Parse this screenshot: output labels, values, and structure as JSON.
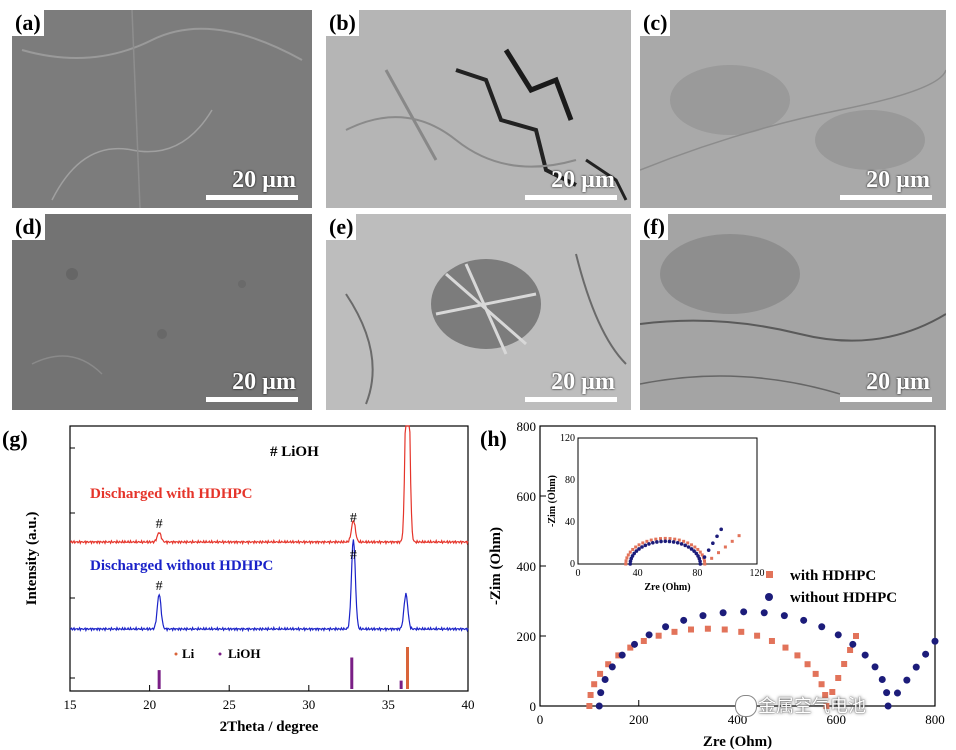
{
  "panels": [
    {
      "id": "a",
      "label": "(a)",
      "scale": "20 µm",
      "tone": "smooth"
    },
    {
      "id": "b",
      "label": "(b)",
      "scale": "20 µm",
      "tone": "cracked"
    },
    {
      "id": "c",
      "label": "(c)",
      "scale": "20 µm",
      "tone": "textured"
    },
    {
      "id": "d",
      "label": "(d)",
      "scale": "20 µm",
      "tone": "smooth"
    },
    {
      "id": "e",
      "label": "(e)",
      "scale": "20 µm",
      "tone": "cracked"
    },
    {
      "id": "f",
      "label": "(f)",
      "scale": "20 µm",
      "tone": "textured"
    }
  ],
  "colors": {
    "red": "#e5342a",
    "blue": "#1a22c8",
    "purple": "#7a1f86",
    "orange": "#d9643a",
    "salmon": "#e2735a",
    "navy": "#1c1c7a"
  },
  "chart_data": [
    {
      "panel_label": "(g)",
      "type": "line",
      "xlabel": "2Theta / degree",
      "ylabel": "Intensity (a.u.)",
      "xlim": [
        15,
        40
      ],
      "xticks": [
        15,
        20,
        25,
        30,
        35,
        40
      ],
      "annotations": {
        "liohLegend": "# LiOH",
        "hash": "#"
      },
      "series": [
        {
          "name": "Discharged with HDHPC",
          "color": "#e5342a",
          "peaks": [
            {
              "x": 20.6,
              "h": 0.04
            },
            {
              "x": 32.8,
              "h": 0.09
            },
            {
              "x": 36.2,
              "h": 1.0
            }
          ]
        },
        {
          "name": "Discharged without HDHPC",
          "color": "#1a22c8",
          "peaks": [
            {
              "x": 20.6,
              "h": 0.28
            },
            {
              "x": 32.8,
              "h": 0.72
            },
            {
              "x": 36.1,
              "h": 0.28
            }
          ]
        }
      ],
      "reference_sticks": [
        {
          "name": "Li",
          "color": "#d9643a",
          "x": [
            36.2
          ],
          "h": [
            1.0
          ]
        },
        {
          "name": "LiOH",
          "color": "#7a1f86",
          "x": [
            20.6,
            32.7,
            35.8
          ],
          "h": [
            0.45,
            0.75,
            0.2
          ]
        }
      ],
      "legend": [
        "Li",
        "LiOH"
      ]
    },
    {
      "panel_label": "(h)",
      "type": "scatter",
      "xlabel": "Zre (Ohm)",
      "ylabel": "-Zim (Ohm)",
      "xlim": [
        0,
        800
      ],
      "ylim": [
        0,
        800
      ],
      "xticks": [
        0,
        200,
        400,
        600,
        800
      ],
      "yticks": [
        0,
        200,
        400,
        600,
        800
      ],
      "series": [
        {
          "name": "with HDHPC",
          "color": "#e2735a",
          "marker": "square",
          "r0": 100,
          "r1": 580,
          "tail_end": [
            640,
            200
          ]
        },
        {
          "name": "without HDHPC",
          "color": "#1c1c7a",
          "marker": "circle",
          "r0": 120,
          "r1": 705,
          "tail_end": [
            800,
            185
          ]
        }
      ],
      "inset": {
        "xlim": [
          0,
          120
        ],
        "ylim": [
          0,
          120
        ],
        "xticks": [
          0,
          40,
          80,
          120
        ],
        "yticks": [
          0,
          40,
          80,
          120
        ],
        "xlabel": "Zre (Ohm)",
        "ylabel": "-Zim (Ohm)",
        "series": [
          {
            "name": "with HDHPC",
            "r0": 32,
            "r1": 85,
            "tail_end": [
              108,
              27
            ]
          },
          {
            "name": "without HDHPC",
            "r0": 35,
            "r1": 82,
            "tail_end": [
              96,
              33
            ]
          }
        ]
      }
    }
  ],
  "watermark": "金属空气电池"
}
